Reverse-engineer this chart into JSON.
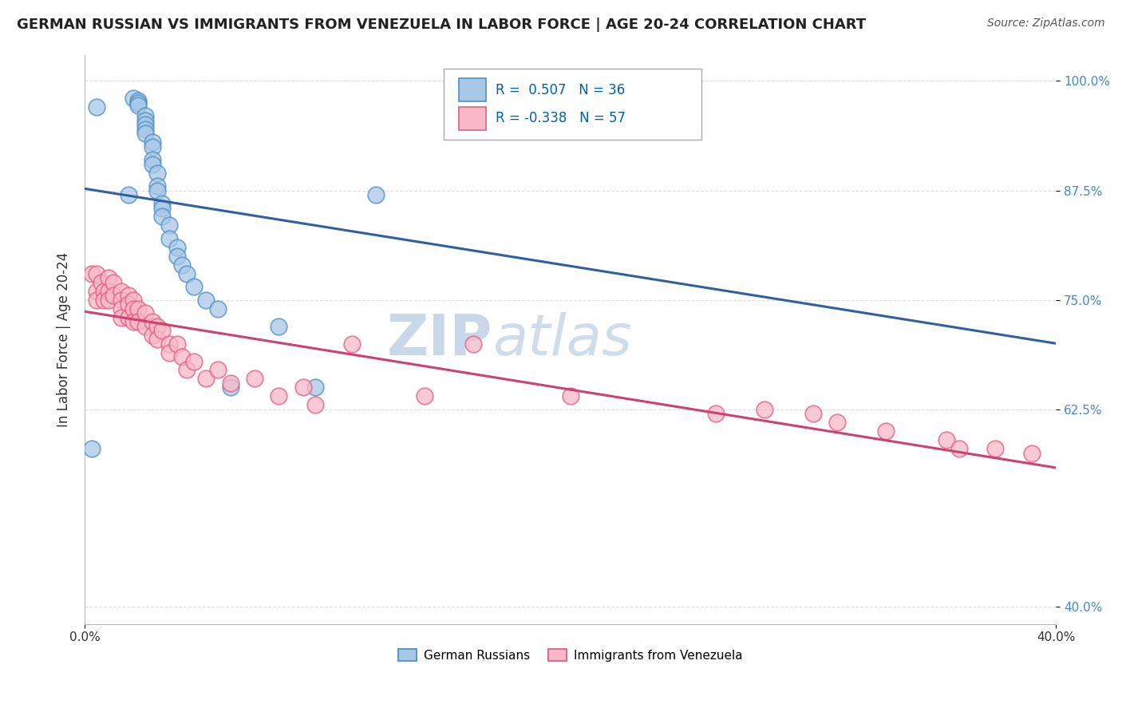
{
  "title": "GERMAN RUSSIAN VS IMMIGRANTS FROM VENEZUELA IN LABOR FORCE | AGE 20-24 CORRELATION CHART",
  "source": "Source: ZipAtlas.com",
  "ylabel": "In Labor Force | Age 20-24",
  "ytick_labels": [
    "100.0%",
    "87.5%",
    "75.0%",
    "62.5%",
    "40.0%"
  ],
  "ytick_values": [
    1.0,
    0.875,
    0.75,
    0.625,
    0.4
  ],
  "xlim": [
    0.0,
    0.4
  ],
  "ylim": [
    0.38,
    1.03
  ],
  "legend_blue_r": "0.507",
  "legend_blue_n": "36",
  "legend_pink_r": "-0.338",
  "legend_pink_n": "57",
  "legend_label_blue": "German Russians",
  "legend_label_pink": "Immigrants from Venezuela",
  "blue_color": "#A8C8E8",
  "pink_color": "#F8B8C8",
  "blue_edge_color": "#5090C0",
  "pink_edge_color": "#E06080",
  "blue_line_color": "#3060A0",
  "pink_line_color": "#D04070",
  "watermark_color": "#C8D8E8",
  "background_color": "#FFFFFF",
  "grid_color": "#DDDDDD",
  "blue_x": [
    0.003,
    0.005,
    0.018,
    0.02,
    0.022,
    0.022,
    0.022,
    0.025,
    0.025,
    0.025,
    0.025,
    0.025,
    0.028,
    0.028,
    0.028,
    0.028,
    0.03,
    0.03,
    0.03,
    0.032,
    0.032,
    0.032,
    0.035,
    0.035,
    0.038,
    0.038,
    0.04,
    0.042,
    0.045,
    0.05,
    0.055,
    0.06,
    0.08,
    0.095,
    0.12,
    0.178
  ],
  "blue_y": [
    0.58,
    0.97,
    0.87,
    0.98,
    0.978,
    0.975,
    0.972,
    0.96,
    0.955,
    0.95,
    0.945,
    0.94,
    0.93,
    0.925,
    0.91,
    0.905,
    0.895,
    0.88,
    0.875,
    0.86,
    0.855,
    0.845,
    0.835,
    0.82,
    0.81,
    0.8,
    0.79,
    0.78,
    0.765,
    0.75,
    0.74,
    0.65,
    0.72,
    0.65,
    0.87,
    1.0
  ],
  "pink_x": [
    0.003,
    0.005,
    0.005,
    0.005,
    0.007,
    0.008,
    0.008,
    0.01,
    0.01,
    0.01,
    0.012,
    0.012,
    0.015,
    0.015,
    0.015,
    0.015,
    0.018,
    0.018,
    0.018,
    0.02,
    0.02,
    0.02,
    0.022,
    0.022,
    0.025,
    0.025,
    0.028,
    0.028,
    0.03,
    0.03,
    0.032,
    0.035,
    0.035,
    0.038,
    0.04,
    0.042,
    0.045,
    0.05,
    0.055,
    0.06,
    0.07,
    0.08,
    0.09,
    0.095,
    0.11,
    0.14,
    0.16,
    0.2,
    0.26,
    0.28,
    0.3,
    0.31,
    0.33,
    0.355,
    0.36,
    0.375,
    0.39
  ],
  "pink_y": [
    0.78,
    0.78,
    0.76,
    0.75,
    0.77,
    0.76,
    0.75,
    0.775,
    0.76,
    0.75,
    0.77,
    0.755,
    0.76,
    0.75,
    0.74,
    0.73,
    0.755,
    0.745,
    0.73,
    0.75,
    0.74,
    0.725,
    0.74,
    0.725,
    0.735,
    0.72,
    0.725,
    0.71,
    0.72,
    0.705,
    0.715,
    0.7,
    0.69,
    0.7,
    0.685,
    0.67,
    0.68,
    0.66,
    0.67,
    0.655,
    0.66,
    0.64,
    0.65,
    0.63,
    0.7,
    0.64,
    0.7,
    0.64,
    0.62,
    0.625,
    0.62,
    0.61,
    0.6,
    0.59,
    0.58,
    0.58,
    0.575
  ],
  "title_fontsize": 13,
  "source_fontsize": 10,
  "tick_fontsize": 11,
  "legend_fontsize": 12
}
